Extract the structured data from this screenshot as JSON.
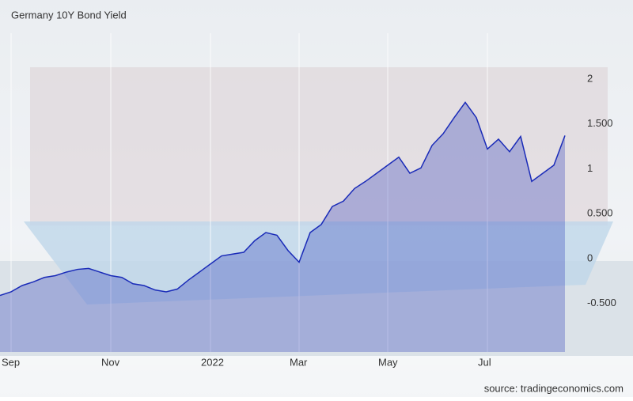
{
  "chart_data": {
    "type": "area",
    "title": "Germany 10Y Bond Yield",
    "source": "source: tradingeconomics.com",
    "categories": [
      null,
      "Sep",
      null,
      null,
      null,
      null,
      null,
      null,
      null,
      null,
      "Nov",
      null,
      null,
      null,
      null,
      null,
      null,
      null,
      null,
      "2022",
      null,
      null,
      null,
      null,
      null,
      null,
      null,
      "Mar",
      null,
      null,
      null,
      null,
      null,
      null,
      null,
      "May",
      null,
      null,
      null,
      null,
      null,
      null,
      null,
      null,
      "Jul",
      null,
      null,
      null,
      null,
      null,
      null,
      null
    ],
    "series": [
      {
        "name": "Germany 10Y Bond Yield",
        "color": "#1a2bb8",
        "values": [
          -0.41,
          -0.37,
          -0.3,
          -0.26,
          -0.21,
          -0.19,
          -0.15,
          -0.12,
          -0.11,
          -0.15,
          -0.19,
          -0.21,
          -0.28,
          -0.3,
          -0.35,
          -0.37,
          -0.34,
          -0.24,
          -0.15,
          -0.06,
          0.03,
          0.05,
          0.07,
          0.2,
          0.29,
          0.26,
          0.09,
          -0.04,
          0.29,
          0.38,
          0.58,
          0.64,
          0.78,
          0.86,
          0.95,
          1.04,
          1.13,
          0.95,
          1.01,
          1.26,
          1.39,
          1.57,
          1.74,
          1.57,
          1.22,
          1.33,
          1.19,
          1.36,
          0.86,
          0.95,
          1.04,
          1.37
        ]
      }
    ],
    "ylim": [
      -1.04,
      2.51
    ],
    "yticks": [
      {
        "value": -0.5,
        "label": "-0.500"
      },
      0,
      {
        "value": 0.5,
        "label": "0.500"
      },
      1,
      {
        "value": 1.5,
        "label": "1.500"
      },
      2
    ],
    "grid": true
  }
}
